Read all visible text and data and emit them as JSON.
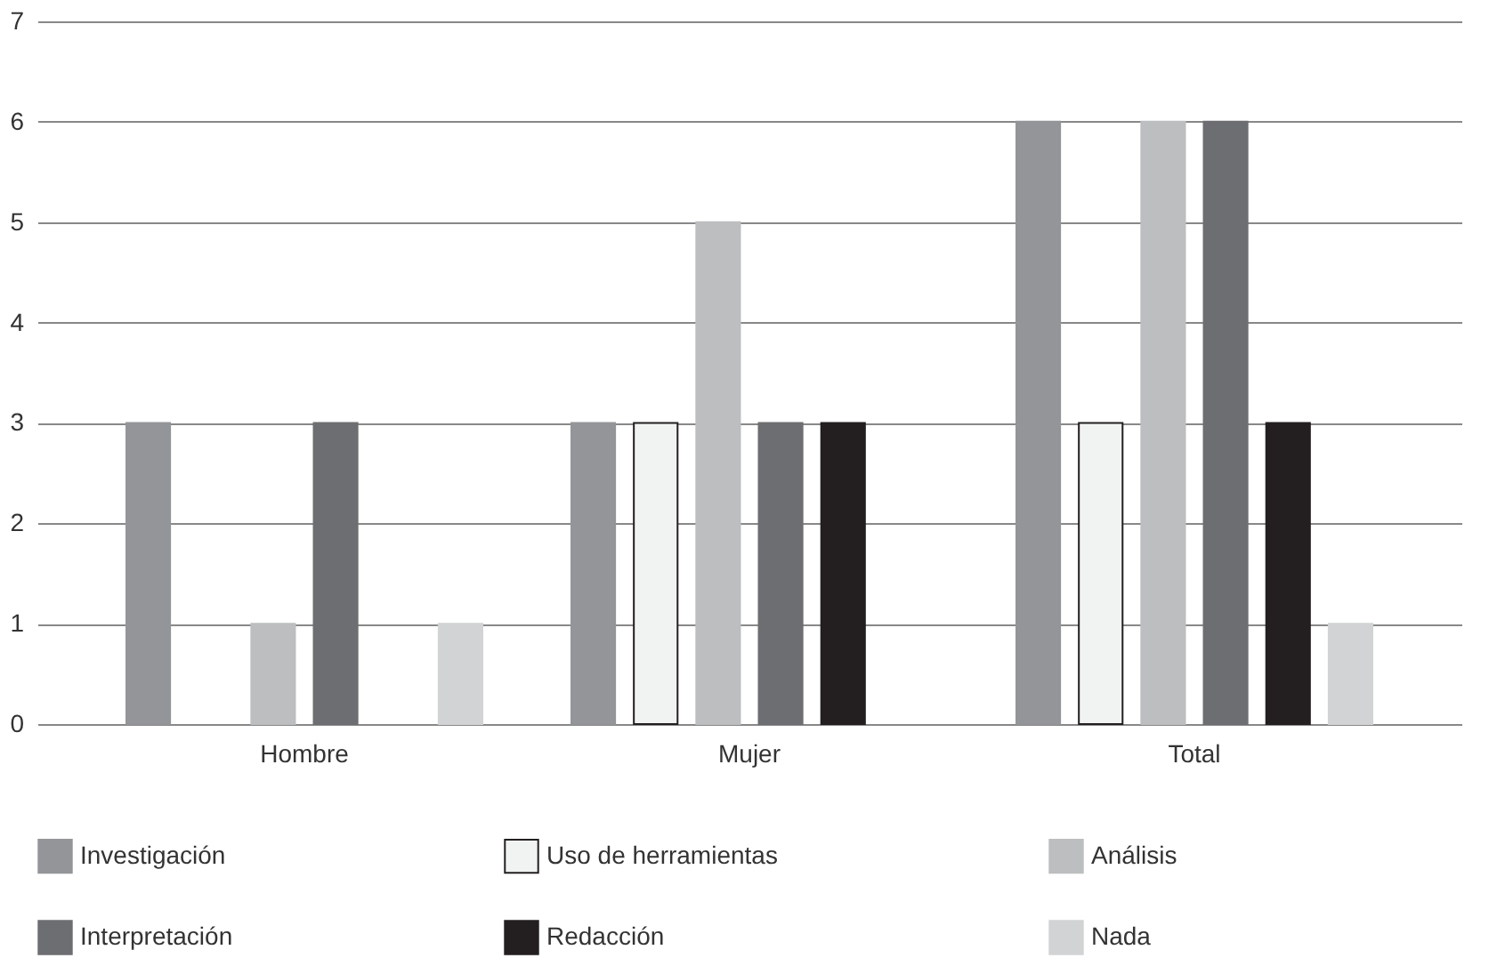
{
  "chart_data": {
    "type": "bar",
    "categories": [
      "Hombre",
      "Mujer",
      "Total"
    ],
    "series": [
      {
        "name": "Investigación",
        "color": "#939598",
        "values": [
          3,
          3,
          6
        ]
      },
      {
        "name": "Uso de herramientas",
        "color": "#f1f2f2",
        "values": [
          null,
          3,
          3
        ]
      },
      {
        "name": "Análisis",
        "color": "#bcbec0",
        "values": [
          1,
          5,
          6
        ]
      },
      {
        "name": "Interpretación",
        "color": "#6d6e71",
        "values": [
          3,
          3,
          6
        ]
      },
      {
        "name": "Redacción",
        "color": "#231f20",
        "values": [
          null,
          3,
          3
        ]
      },
      {
        "name": "Nada",
        "color": "#d1d3d4",
        "values": [
          1,
          null,
          1
        ]
      }
    ],
    "ylim": [
      0,
      7
    ],
    "yticks": [
      0,
      1,
      2,
      3,
      4,
      5,
      6,
      7
    ],
    "grid": "y",
    "legend": "bottom"
  }
}
